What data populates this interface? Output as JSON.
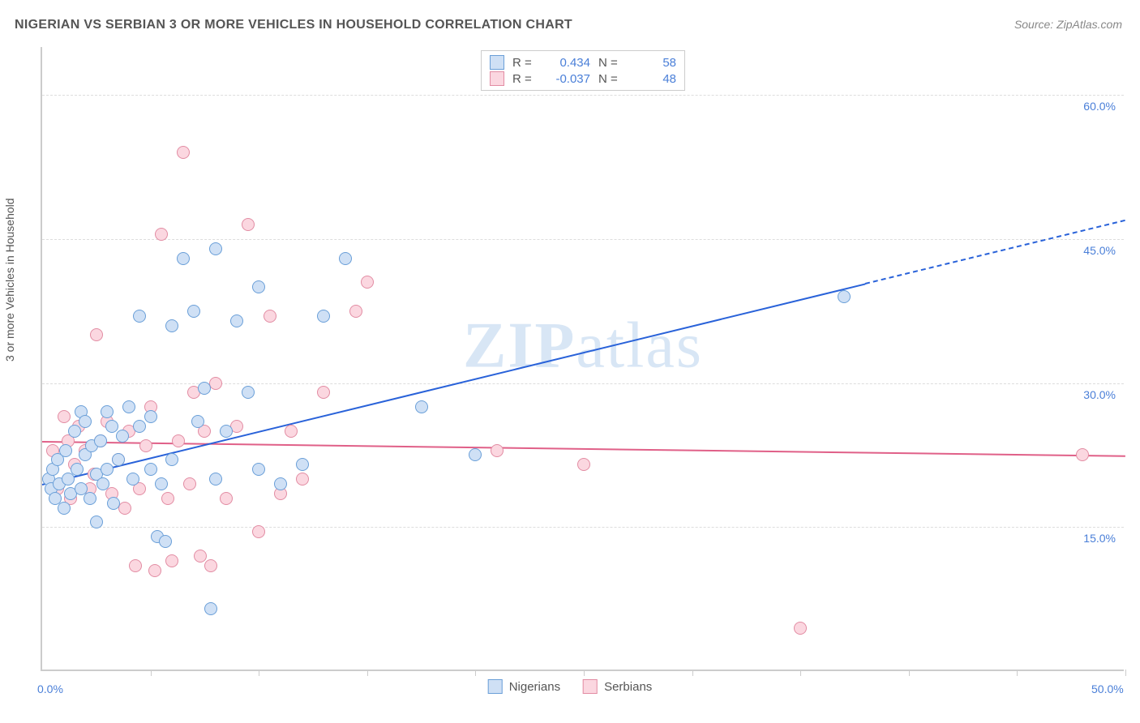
{
  "title": "NIGERIAN VS SERBIAN 3 OR MORE VEHICLES IN HOUSEHOLD CORRELATION CHART",
  "source": "Source: ZipAtlas.com",
  "y_axis_title": "3 or more Vehicles in Household",
  "watermark_bold": "ZIP",
  "watermark_light": "atlas",
  "chart": {
    "type": "scatter",
    "x_min": 0,
    "x_max": 50,
    "y_min": 0,
    "y_max": 65,
    "x_ticks": [
      5,
      10,
      15,
      20,
      25,
      30,
      35,
      40,
      45,
      50
    ],
    "x_labels": [
      {
        "val": 0,
        "text": "0.0%"
      },
      {
        "val": 50,
        "text": "50.0%"
      }
    ],
    "y_gridlines": [
      15,
      30,
      45,
      60
    ],
    "y_labels": [
      {
        "val": 15,
        "text": "15.0%"
      },
      {
        "val": 30,
        "text": "30.0%"
      },
      {
        "val": 45,
        "text": "45.0%"
      },
      {
        "val": 60,
        "text": "60.0%"
      }
    ],
    "marker_radius": 8,
    "marker_border_width": 1.5,
    "background_color": "#ffffff",
    "grid_color": "#dddddd",
    "axis_color": "#cccccc",
    "label_color": "#4a7fd8",
    "title_color": "#555555",
    "title_fontsize": 16,
    "label_fontsize": 14
  },
  "series": {
    "nigerians": {
      "label": "Nigerians",
      "fill": "#cfe0f5",
      "stroke": "#6a9fd8",
      "trend_color": "#2962d9",
      "trend": {
        "x1": 0,
        "y1": 19.5,
        "x2": 50,
        "y2": 47.0,
        "dash_from_x": 38
      },
      "R_label": "R =",
      "R": "0.434",
      "N_label": "N =",
      "N": "58",
      "points": [
        [
          0.3,
          20
        ],
        [
          0.4,
          19
        ],
        [
          0.5,
          21
        ],
        [
          0.6,
          18
        ],
        [
          0.7,
          22
        ],
        [
          0.8,
          19.5
        ],
        [
          1,
          17
        ],
        [
          1.1,
          23
        ],
        [
          1.2,
          20
        ],
        [
          1.3,
          18.5
        ],
        [
          1.5,
          25
        ],
        [
          1.6,
          21
        ],
        [
          1.8,
          27
        ],
        [
          1.8,
          19
        ],
        [
          2,
          22.5
        ],
        [
          2,
          26
        ],
        [
          2.2,
          18
        ],
        [
          2.3,
          23.5
        ],
        [
          2.5,
          20.5
        ],
        [
          2.5,
          15.5
        ],
        [
          2.7,
          24
        ],
        [
          2.8,
          19.5
        ],
        [
          3,
          27
        ],
        [
          3,
          21
        ],
        [
          3.2,
          25.5
        ],
        [
          3.3,
          17.5
        ],
        [
          3.5,
          22
        ],
        [
          3.7,
          24.5
        ],
        [
          4,
          27.5
        ],
        [
          4.2,
          20
        ],
        [
          4.5,
          37
        ],
        [
          4.5,
          25.5
        ],
        [
          5,
          26.5
        ],
        [
          5,
          21
        ],
        [
          5.3,
          14
        ],
        [
          5.5,
          19.5
        ],
        [
          5.7,
          13.5
        ],
        [
          6,
          36
        ],
        [
          6,
          22
        ],
        [
          6.5,
          43
        ],
        [
          7,
          37.5
        ],
        [
          7.2,
          26
        ],
        [
          7.5,
          29.5
        ],
        [
          7.8,
          6.5
        ],
        [
          8,
          44
        ],
        [
          8,
          20
        ],
        [
          8.5,
          25
        ],
        [
          9,
          36.5
        ],
        [
          9.5,
          29
        ],
        [
          10,
          21
        ],
        [
          10,
          40
        ],
        [
          11,
          19.5
        ],
        [
          12,
          21.5
        ],
        [
          13,
          37
        ],
        [
          14,
          43
        ],
        [
          17.5,
          27.5
        ],
        [
          20,
          22.5
        ],
        [
          37,
          39
        ]
      ]
    },
    "serbians": {
      "label": "Serbians",
      "fill": "#fbd7e0",
      "stroke": "#e28ca3",
      "trend_color": "#e06088",
      "trend": {
        "x1": 0,
        "y1": 24.0,
        "x2": 50,
        "y2": 22.5,
        "dash_from_x": 50
      },
      "R_label": "R =",
      "R": "-0.037",
      "N_label": "N =",
      "N": "48",
      "points": [
        [
          0.5,
          23
        ],
        [
          0.7,
          19
        ],
        [
          1,
          26.5
        ],
        [
          1.2,
          24
        ],
        [
          1.3,
          18
        ],
        [
          1.5,
          21.5
        ],
        [
          1.7,
          25.5
        ],
        [
          2,
          23
        ],
        [
          2.2,
          19
        ],
        [
          2.4,
          20.5
        ],
        [
          2.5,
          35
        ],
        [
          2.7,
          24
        ],
        [
          3,
          26
        ],
        [
          3.2,
          18.5
        ],
        [
          3.5,
          22
        ],
        [
          3.8,
          17
        ],
        [
          4,
          25
        ],
        [
          4.3,
          11
        ],
        [
          4.5,
          19
        ],
        [
          4.8,
          23.5
        ],
        [
          5,
          27.5
        ],
        [
          5.2,
          10.5
        ],
        [
          5.5,
          45.5
        ],
        [
          5.8,
          18
        ],
        [
          6,
          11.5
        ],
        [
          6.3,
          24
        ],
        [
          6.5,
          54
        ],
        [
          6.8,
          19.5
        ],
        [
          7,
          29
        ],
        [
          7.3,
          12
        ],
        [
          7.5,
          25
        ],
        [
          7.8,
          11
        ],
        [
          8,
          30
        ],
        [
          8.5,
          18
        ],
        [
          9,
          25.5
        ],
        [
          9.5,
          46.5
        ],
        [
          10,
          14.5
        ],
        [
          10.5,
          37
        ],
        [
          11,
          18.5
        ],
        [
          11.5,
          25
        ],
        [
          12,
          20
        ],
        [
          13,
          29
        ],
        [
          14.5,
          37.5
        ],
        [
          15,
          40.5
        ],
        [
          21,
          23
        ],
        [
          25,
          21.5
        ],
        [
          35,
          4.5
        ],
        [
          48,
          22.5
        ]
      ]
    }
  },
  "legend_order": [
    "nigerians",
    "serbians"
  ]
}
